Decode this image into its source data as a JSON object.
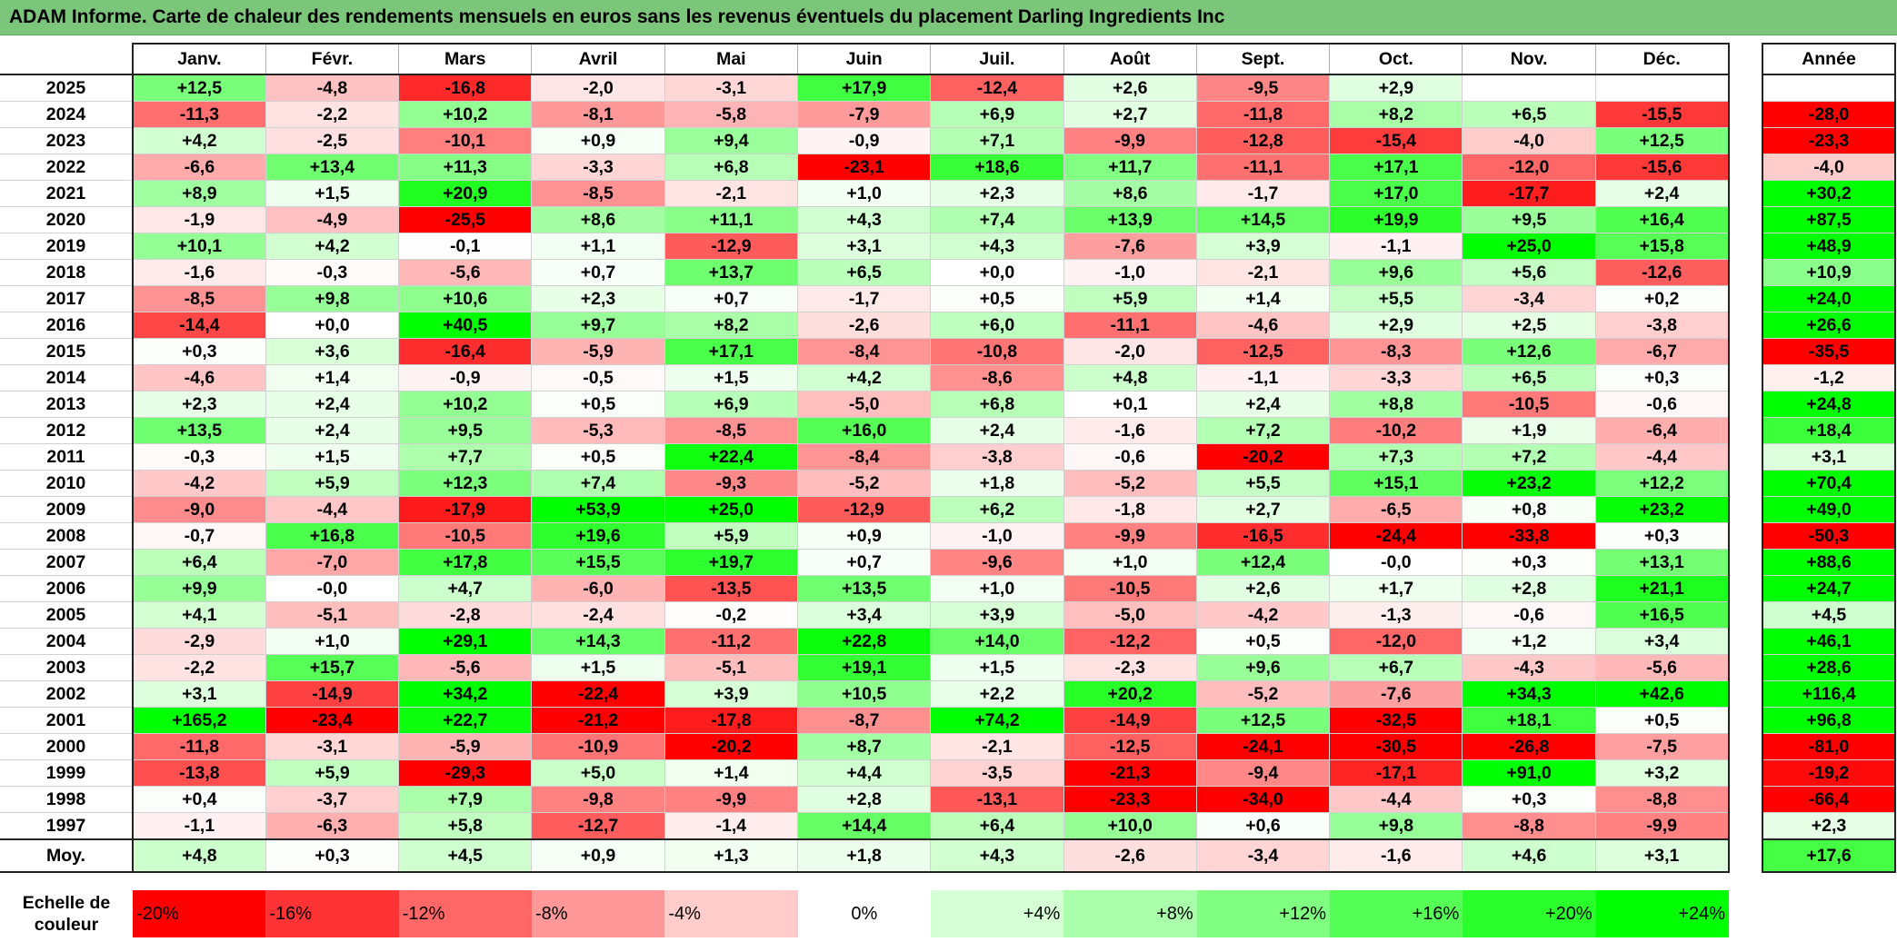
{
  "title": "ADAM Informe. Carte de chaleur des rendements mensuels en euros sans les revenus éventuels du placement Darling Ingredients Inc",
  "chart_data": {
    "type": "heatmap",
    "months": [
      "Janv.",
      "Févr.",
      "Mars",
      "Avril",
      "Mai",
      "Juin",
      "Juil.",
      "Août",
      "Sept.",
      "Oct.",
      "Nov.",
      "Déc."
    ],
    "year_header": "Année",
    "rows": [
      {
        "year": "2025",
        "values": [
          "+12,5",
          "-4,8",
          "-16,8",
          "-2,0",
          "-3,1",
          "+17,9",
          "-12,4",
          "+2,6",
          "-9,5",
          "+2,9",
          "",
          ""
        ],
        "annual": ""
      },
      {
        "year": "2024",
        "values": [
          "-11,3",
          "-2,2",
          "+10,2",
          "-8,1",
          "-5,8",
          "-7,9",
          "+6,9",
          "+2,7",
          "-11,8",
          "+8,2",
          "+6,5",
          "-15,5"
        ],
        "annual": "-28,0"
      },
      {
        "year": "2023",
        "values": [
          "+4,2",
          "-2,5",
          "-10,1",
          "+0,9",
          "+9,4",
          "-0,9",
          "+7,1",
          "-9,9",
          "-12,8",
          "-15,4",
          "-4,0",
          "+12,5"
        ],
        "annual": "-23,3"
      },
      {
        "year": "2022",
        "values": [
          "-6,6",
          "+13,4",
          "+11,3",
          "-3,3",
          "+6,8",
          "-23,1",
          "+18,6",
          "+11,7",
          "-11,1",
          "+17,1",
          "-12,0",
          "-15,6"
        ],
        "annual": "-4,0"
      },
      {
        "year": "2021",
        "values": [
          "+8,9",
          "+1,5",
          "+20,9",
          "-8,5",
          "-2,1",
          "+1,0",
          "+2,3",
          "+8,6",
          "-1,7",
          "+17,0",
          "-17,7",
          "+2,4"
        ],
        "annual": "+30,2"
      },
      {
        "year": "2020",
        "values": [
          "-1,9",
          "-4,9",
          "-25,5",
          "+8,6",
          "+11,1",
          "+4,3",
          "+7,4",
          "+13,9",
          "+14,5",
          "+19,9",
          "+9,5",
          "+16,4"
        ],
        "annual": "+87,5"
      },
      {
        "year": "2019",
        "values": [
          "+10,1",
          "+4,2",
          "-0,1",
          "+1,1",
          "-12,9",
          "+3,1",
          "+4,3",
          "-7,6",
          "+3,9",
          "-1,1",
          "+25,0",
          "+15,8"
        ],
        "annual": "+48,9"
      },
      {
        "year": "2018",
        "values": [
          "-1,6",
          "-0,3",
          "-5,6",
          "+0,7",
          "+13,7",
          "+6,5",
          "+0,0",
          "-1,0",
          "-2,1",
          "+9,6",
          "+5,6",
          "-12,6"
        ],
        "annual": "+10,9"
      },
      {
        "year": "2017",
        "values": [
          "-8,5",
          "+9,8",
          "+10,6",
          "+2,3",
          "+0,7",
          "-1,7",
          "+0,5",
          "+5,9",
          "+1,4",
          "+5,5",
          "-3,4",
          "+0,2"
        ],
        "annual": "+24,0"
      },
      {
        "year": "2016",
        "values": [
          "-14,4",
          "+0,0",
          "+40,5",
          "+9,7",
          "+8,2",
          "-2,6",
          "+6,0",
          "-11,1",
          "-4,6",
          "+2,9",
          "+2,5",
          "-3,8"
        ],
        "annual": "+26,6"
      },
      {
        "year": "2015",
        "values": [
          "+0,3",
          "+3,6",
          "-16,4",
          "-5,9",
          "+17,1",
          "-8,4",
          "-10,8",
          "-2,0",
          "-12,5",
          "-8,3",
          "+12,6",
          "-6,7"
        ],
        "annual": "-35,5"
      },
      {
        "year": "2014",
        "values": [
          "-4,6",
          "+1,4",
          "-0,9",
          "-0,5",
          "+1,5",
          "+4,2",
          "-8,6",
          "+4,8",
          "-1,1",
          "-3,3",
          "+6,5",
          "+0,3"
        ],
        "annual": "-1,2"
      },
      {
        "year": "2013",
        "values": [
          "+2,3",
          "+2,4",
          "+10,2",
          "+0,5",
          "+6,9",
          "-5,0",
          "+6,8",
          "+0,1",
          "+2,4",
          "+8,8",
          "-10,5",
          "-0,6"
        ],
        "annual": "+24,8"
      },
      {
        "year": "2012",
        "values": [
          "+13,5",
          "+2,4",
          "+9,5",
          "-5,3",
          "-8,5",
          "+16,0",
          "+2,4",
          "-1,6",
          "+7,2",
          "-10,2",
          "+1,9",
          "-6,4"
        ],
        "annual": "+18,4"
      },
      {
        "year": "2011",
        "values": [
          "-0,3",
          "+1,5",
          "+7,7",
          "+0,5",
          "+22,4",
          "-8,4",
          "-3,8",
          "-0,6",
          "-20,2",
          "+7,3",
          "+7,2",
          "-4,4"
        ],
        "annual": "+3,1"
      },
      {
        "year": "2010",
        "values": [
          "-4,2",
          "+5,9",
          "+12,3",
          "+7,4",
          "-9,3",
          "-5,2",
          "+1,8",
          "-5,2",
          "+5,5",
          "+15,1",
          "+23,2",
          "+12,2"
        ],
        "annual": "+70,4"
      },
      {
        "year": "2009",
        "values": [
          "-9,0",
          "-4,4",
          "-17,9",
          "+53,9",
          "+25,0",
          "-12,9",
          "+6,2",
          "-1,8",
          "+2,7",
          "-6,5",
          "+0,8",
          "+23,2"
        ],
        "annual": "+49,0"
      },
      {
        "year": "2008",
        "values": [
          "-0,7",
          "+16,8",
          "-10,5",
          "+19,6",
          "+5,9",
          "+0,9",
          "-1,0",
          "-9,9",
          "-16,5",
          "-24,4",
          "-33,8",
          "+0,3"
        ],
        "annual": "-50,3"
      },
      {
        "year": "2007",
        "values": [
          "+6,4",
          "-7,0",
          "+17,8",
          "+15,5",
          "+19,7",
          "+0,7",
          "-9,6",
          "+1,0",
          "+12,4",
          "-0,0",
          "+0,3",
          "+13,1"
        ],
        "annual": "+88,6"
      },
      {
        "year": "2006",
        "values": [
          "+9,9",
          "-0,0",
          "+4,7",
          "-6,0",
          "-13,5",
          "+13,5",
          "+1,0",
          "-10,5",
          "+2,6",
          "+1,7",
          "+2,8",
          "+21,1"
        ],
        "annual": "+24,7"
      },
      {
        "year": "2005",
        "values": [
          "+4,1",
          "-5,1",
          "-2,8",
          "-2,4",
          "-0,2",
          "+3,4",
          "+3,9",
          "-5,0",
          "-4,2",
          "-1,3",
          "-0,6",
          "+16,5"
        ],
        "annual": "+4,5"
      },
      {
        "year": "2004",
        "values": [
          "-2,9",
          "+1,0",
          "+29,1",
          "+14,3",
          "-11,2",
          "+22,8",
          "+14,0",
          "-12,2",
          "+0,5",
          "-12,0",
          "+1,2",
          "+3,4"
        ],
        "annual": "+46,1"
      },
      {
        "year": "2003",
        "values": [
          "-2,2",
          "+15,7",
          "-5,6",
          "+1,5",
          "-5,1",
          "+19,1",
          "+1,5",
          "-2,3",
          "+9,6",
          "+6,7",
          "-4,3",
          "-5,6"
        ],
        "annual": "+28,6"
      },
      {
        "year": "2002",
        "values": [
          "+3,1",
          "-14,9",
          "+34,2",
          "-22,4",
          "+3,9",
          "+10,5",
          "+2,2",
          "+20,2",
          "-5,2",
          "-7,6",
          "+34,3",
          "+42,6"
        ],
        "annual": "+116,4"
      },
      {
        "year": "2001",
        "values": [
          "+165,2",
          "-23,4",
          "+22,7",
          "-21,2",
          "-17,8",
          "-8,7",
          "+74,2",
          "-14,9",
          "+12,5",
          "-32,5",
          "+18,1",
          "+0,5"
        ],
        "annual": "+96,8"
      },
      {
        "year": "2000",
        "values": [
          "-11,8",
          "-3,1",
          "-5,9",
          "-10,9",
          "-20,2",
          "+8,7",
          "-2,1",
          "-12,5",
          "-24,1",
          "-30,5",
          "-26,8",
          "-7,5"
        ],
        "annual": "-81,0"
      },
      {
        "year": "1999",
        "values": [
          "-13,8",
          "+5,9",
          "-29,3",
          "+5,0",
          "+1,4",
          "+4,4",
          "-3,5",
          "-21,3",
          "-9,4",
          "-17,1",
          "+91,0",
          "+3,2"
        ],
        "annual": "-19,2"
      },
      {
        "year": "1998",
        "values": [
          "+0,4",
          "-3,7",
          "+7,9",
          "-9,8",
          "-9,9",
          "+2,8",
          "-13,1",
          "-23,3",
          "-34,0",
          "-4,4",
          "+0,3",
          "-8,8"
        ],
        "annual": "-66,4"
      },
      {
        "year": "1997",
        "values": [
          "-1,1",
          "-6,3",
          "+5,8",
          "-12,7",
          "-1,4",
          "+14,4",
          "+6,4",
          "+10,0",
          "+0,6",
          "+9,8",
          "-8,8",
          "-9,9"
        ],
        "annual": "+2,3"
      }
    ],
    "average": {
      "label": "Moy.",
      "values": [
        "+4,8",
        "+0,3",
        "+4,5",
        "+0,9",
        "+1,3",
        "+1,8",
        "+4,3",
        "-2,6",
        "-3,4",
        "-1,6",
        "+4,6",
        "+3,1"
      ],
      "annual": "+17,6"
    },
    "scale": {
      "label": "Echelle de couleur",
      "steps": [
        {
          "text": "-20%",
          "value": -20
        },
        {
          "text": "-16%",
          "value": -16
        },
        {
          "text": "-12%",
          "value": -12
        },
        {
          "text": "-8%",
          "value": -8
        },
        {
          "text": "-4%",
          "value": -4
        },
        {
          "text": "0%",
          "value": 0
        },
        {
          "text": "+4%",
          "value": 4
        },
        {
          "text": "+8%",
          "value": 8
        },
        {
          "text": "+12%",
          "value": 12
        },
        {
          "text": "+16%",
          "value": 16
        },
        {
          "text": "+20%",
          "value": 20
        },
        {
          "text": "+24%",
          "value": 24
        }
      ]
    },
    "colors": {
      "negative": "#ff0000",
      "zero": "#ffffff",
      "positive": "#00ff00"
    },
    "color_range": [
      -20,
      24
    ]
  }
}
